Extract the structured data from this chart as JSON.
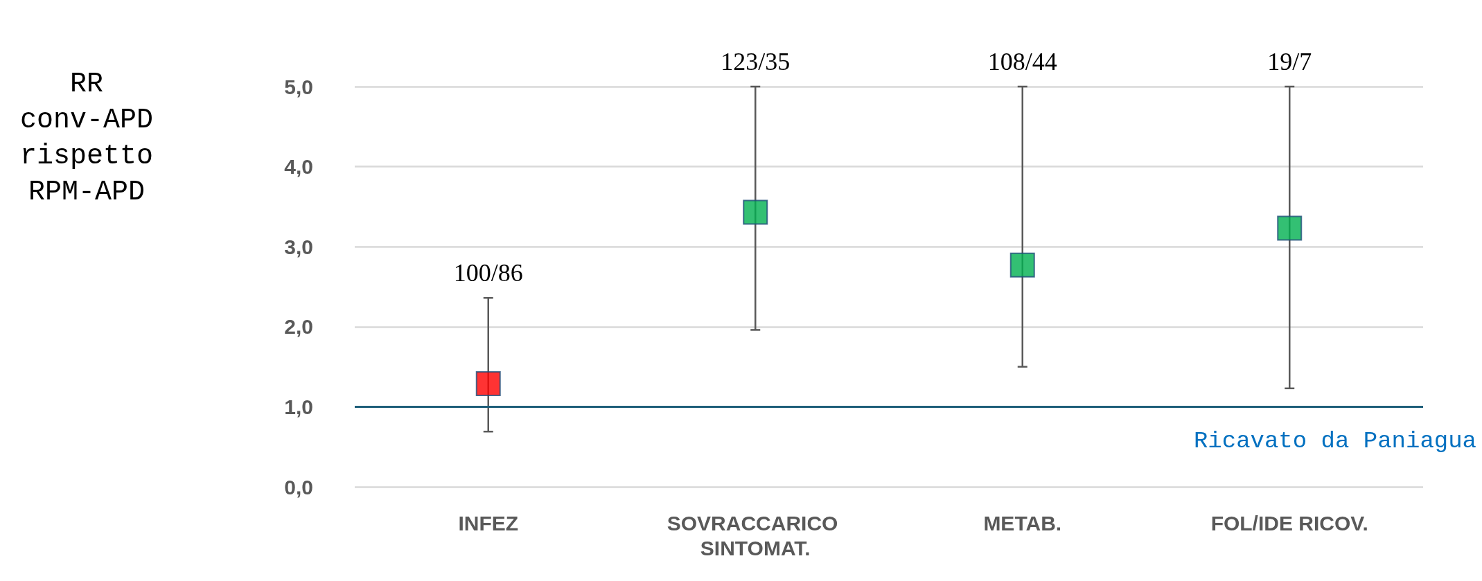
{
  "chart_data": {
    "type": "scatter",
    "ylabel": "RR\nconv-APD\nrispetto\nRPM-APD",
    "categories": [
      "INFEZ",
      "SOVRACCARICO SINTOMAT.",
      "METAB.",
      "FOL/IDE RICOV."
    ],
    "values": [
      1.29,
      3.43,
      2.77,
      3.23
    ],
    "colors": [
      "#ff0000",
      "#00b050",
      "#00b050",
      "#00b050"
    ],
    "errors": [
      [
        0.69,
        2.36
      ],
      [
        1.96,
        5.0
      ],
      [
        1.5,
        5.0
      ],
      [
        1.23,
        5.0
      ]
    ],
    "marker": "square",
    "ylim": [
      0,
      5
    ],
    "yticks": [
      {
        "value": 0,
        "label": "0,0"
      },
      {
        "value": 1,
        "label": "1,0"
      },
      {
        "value": 2,
        "label": "2,0"
      },
      {
        "value": 3,
        "label": "3,0"
      },
      {
        "value": 4,
        "label": "4,0"
      },
      {
        "value": 5,
        "label": "5,0"
      }
    ],
    "grid": "y",
    "ref_lines": [
      {
        "axis": "y",
        "value": 1.0,
        "color": "#1f5f7a"
      }
    ],
    "annotations": [
      "100/86",
      "123/35",
      "108/44",
      "19/7",
      "Ricavato da Paniagua"
    ]
  }
}
